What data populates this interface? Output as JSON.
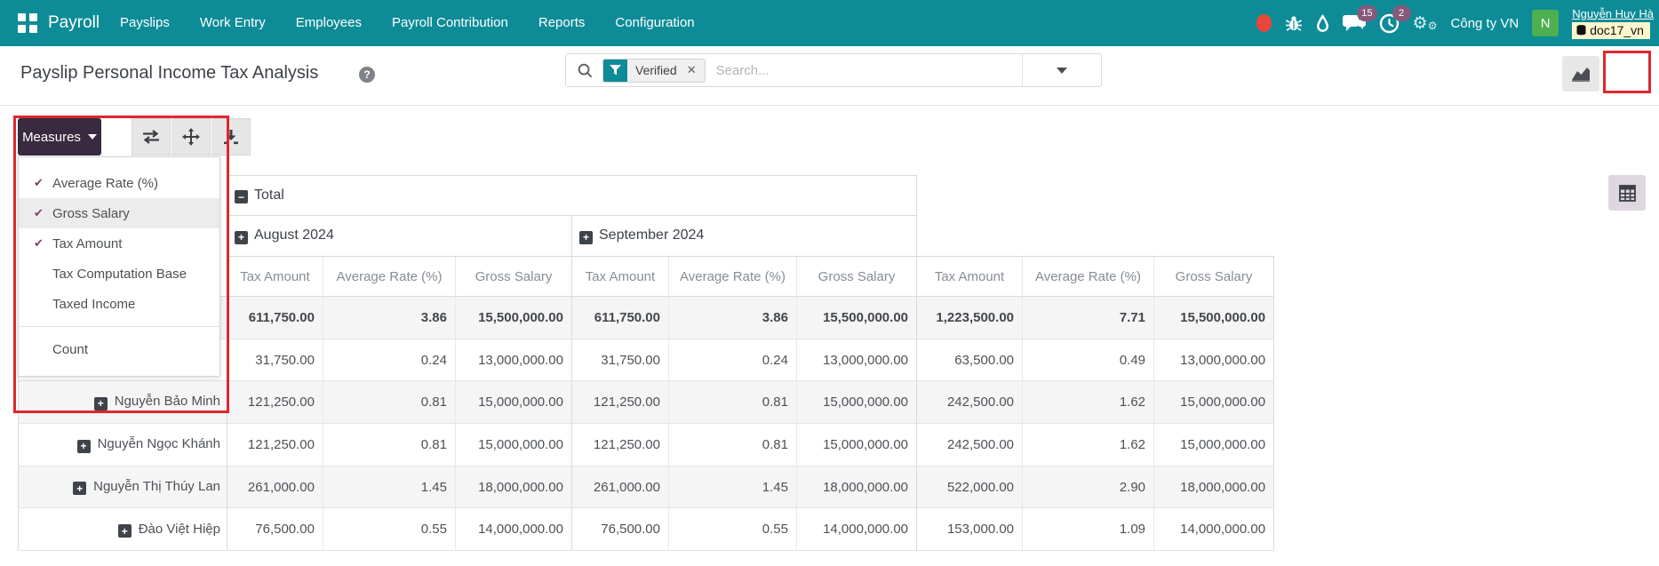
{
  "topbar": {
    "app_name": "Payroll",
    "menu": [
      "Payslips",
      "Work Entry",
      "Employees",
      "Payroll Contribution",
      "Reports",
      "Configuration"
    ],
    "company": "Công ty VN",
    "user_name": "Nguyễn Huy Hà",
    "user_initial": "N",
    "database_badge": "doc17_vn",
    "message_count": "15",
    "activity_count": "2",
    "colors": {
      "bar": "#0d8c97",
      "avatar": "#4caf50",
      "badge": "#875a7b",
      "record_dot": "#e8463c",
      "db_badge_bg": "#fdf6cd"
    }
  },
  "control_panel": {
    "title": "Payslip Personal Income Tax Analysis",
    "search": {
      "facet_label": "Verified",
      "placeholder": "Search..."
    },
    "view_switcher": [
      {
        "name": "graph",
        "active": false
      },
      {
        "name": "pivot",
        "active": true
      }
    ]
  },
  "toolbar": {
    "measures_label": "Measures",
    "icon_buttons": [
      "flip-axis",
      "expand-all",
      "download"
    ]
  },
  "measures_menu": {
    "items": [
      {
        "label": "Average Rate (%)",
        "checked": true,
        "hover": false
      },
      {
        "label": "Gross Salary",
        "checked": true,
        "hover": true
      },
      {
        "label": "Tax Amount",
        "checked": true,
        "hover": false
      },
      {
        "label": "Tax Computation Base",
        "checked": false,
        "hover": false
      },
      {
        "label": "Taxed Income",
        "checked": false,
        "hover": false
      }
    ],
    "footer_item": "Count"
  },
  "pivot": {
    "col_root": "Total",
    "col_groups": [
      "August 2024",
      "September 2024"
    ],
    "measure_headers": [
      "Tax Amount",
      "Average Rate (%)",
      "Gross Salary"
    ],
    "rows": [
      {
        "label": "",
        "bold": true,
        "expandable": false,
        "values": [
          "611,750.00",
          "3.86",
          "15,500,000.00",
          "611,750.00",
          "3.86",
          "15,500,000.00",
          "1,223,500.00",
          "7.71",
          "15,500,000.00"
        ]
      },
      {
        "label": "",
        "bold": false,
        "expandable": false,
        "values": [
          "31,750.00",
          "0.24",
          "13,000,000.00",
          "31,750.00",
          "0.24",
          "13,000,000.00",
          "63,500.00",
          "0.49",
          "13,000,000.00"
        ]
      },
      {
        "label": "Nguyễn Bảo Minh",
        "bold": false,
        "expandable": true,
        "values": [
          "121,250.00",
          "0.81",
          "15,000,000.00",
          "121,250.00",
          "0.81",
          "15,000,000.00",
          "242,500.00",
          "1.62",
          "15,000,000.00"
        ]
      },
      {
        "label": "Nguyễn Ngọc Khánh",
        "bold": false,
        "expandable": true,
        "values": [
          "121,250.00",
          "0.81",
          "15,000,000.00",
          "121,250.00",
          "0.81",
          "15,000,000.00",
          "242,500.00",
          "1.62",
          "15,000,000.00"
        ]
      },
      {
        "label": "Nguyễn Thị Thúy Lan",
        "bold": false,
        "expandable": true,
        "values": [
          "261,000.00",
          "1.45",
          "18,000,000.00",
          "261,000.00",
          "1.45",
          "18,000,000.00",
          "522,000.00",
          "2.90",
          "18,000,000.00"
        ]
      },
      {
        "label": "Đào Việt Hiệp",
        "bold": false,
        "expandable": true,
        "values": [
          "76,500.00",
          "0.55",
          "14,000,000.00",
          "76,500.00",
          "0.55",
          "14,000,000.00",
          "153,000.00",
          "1.09",
          "14,000,000.00"
        ]
      }
    ]
  },
  "annotations": {
    "color": "#e0262d"
  }
}
